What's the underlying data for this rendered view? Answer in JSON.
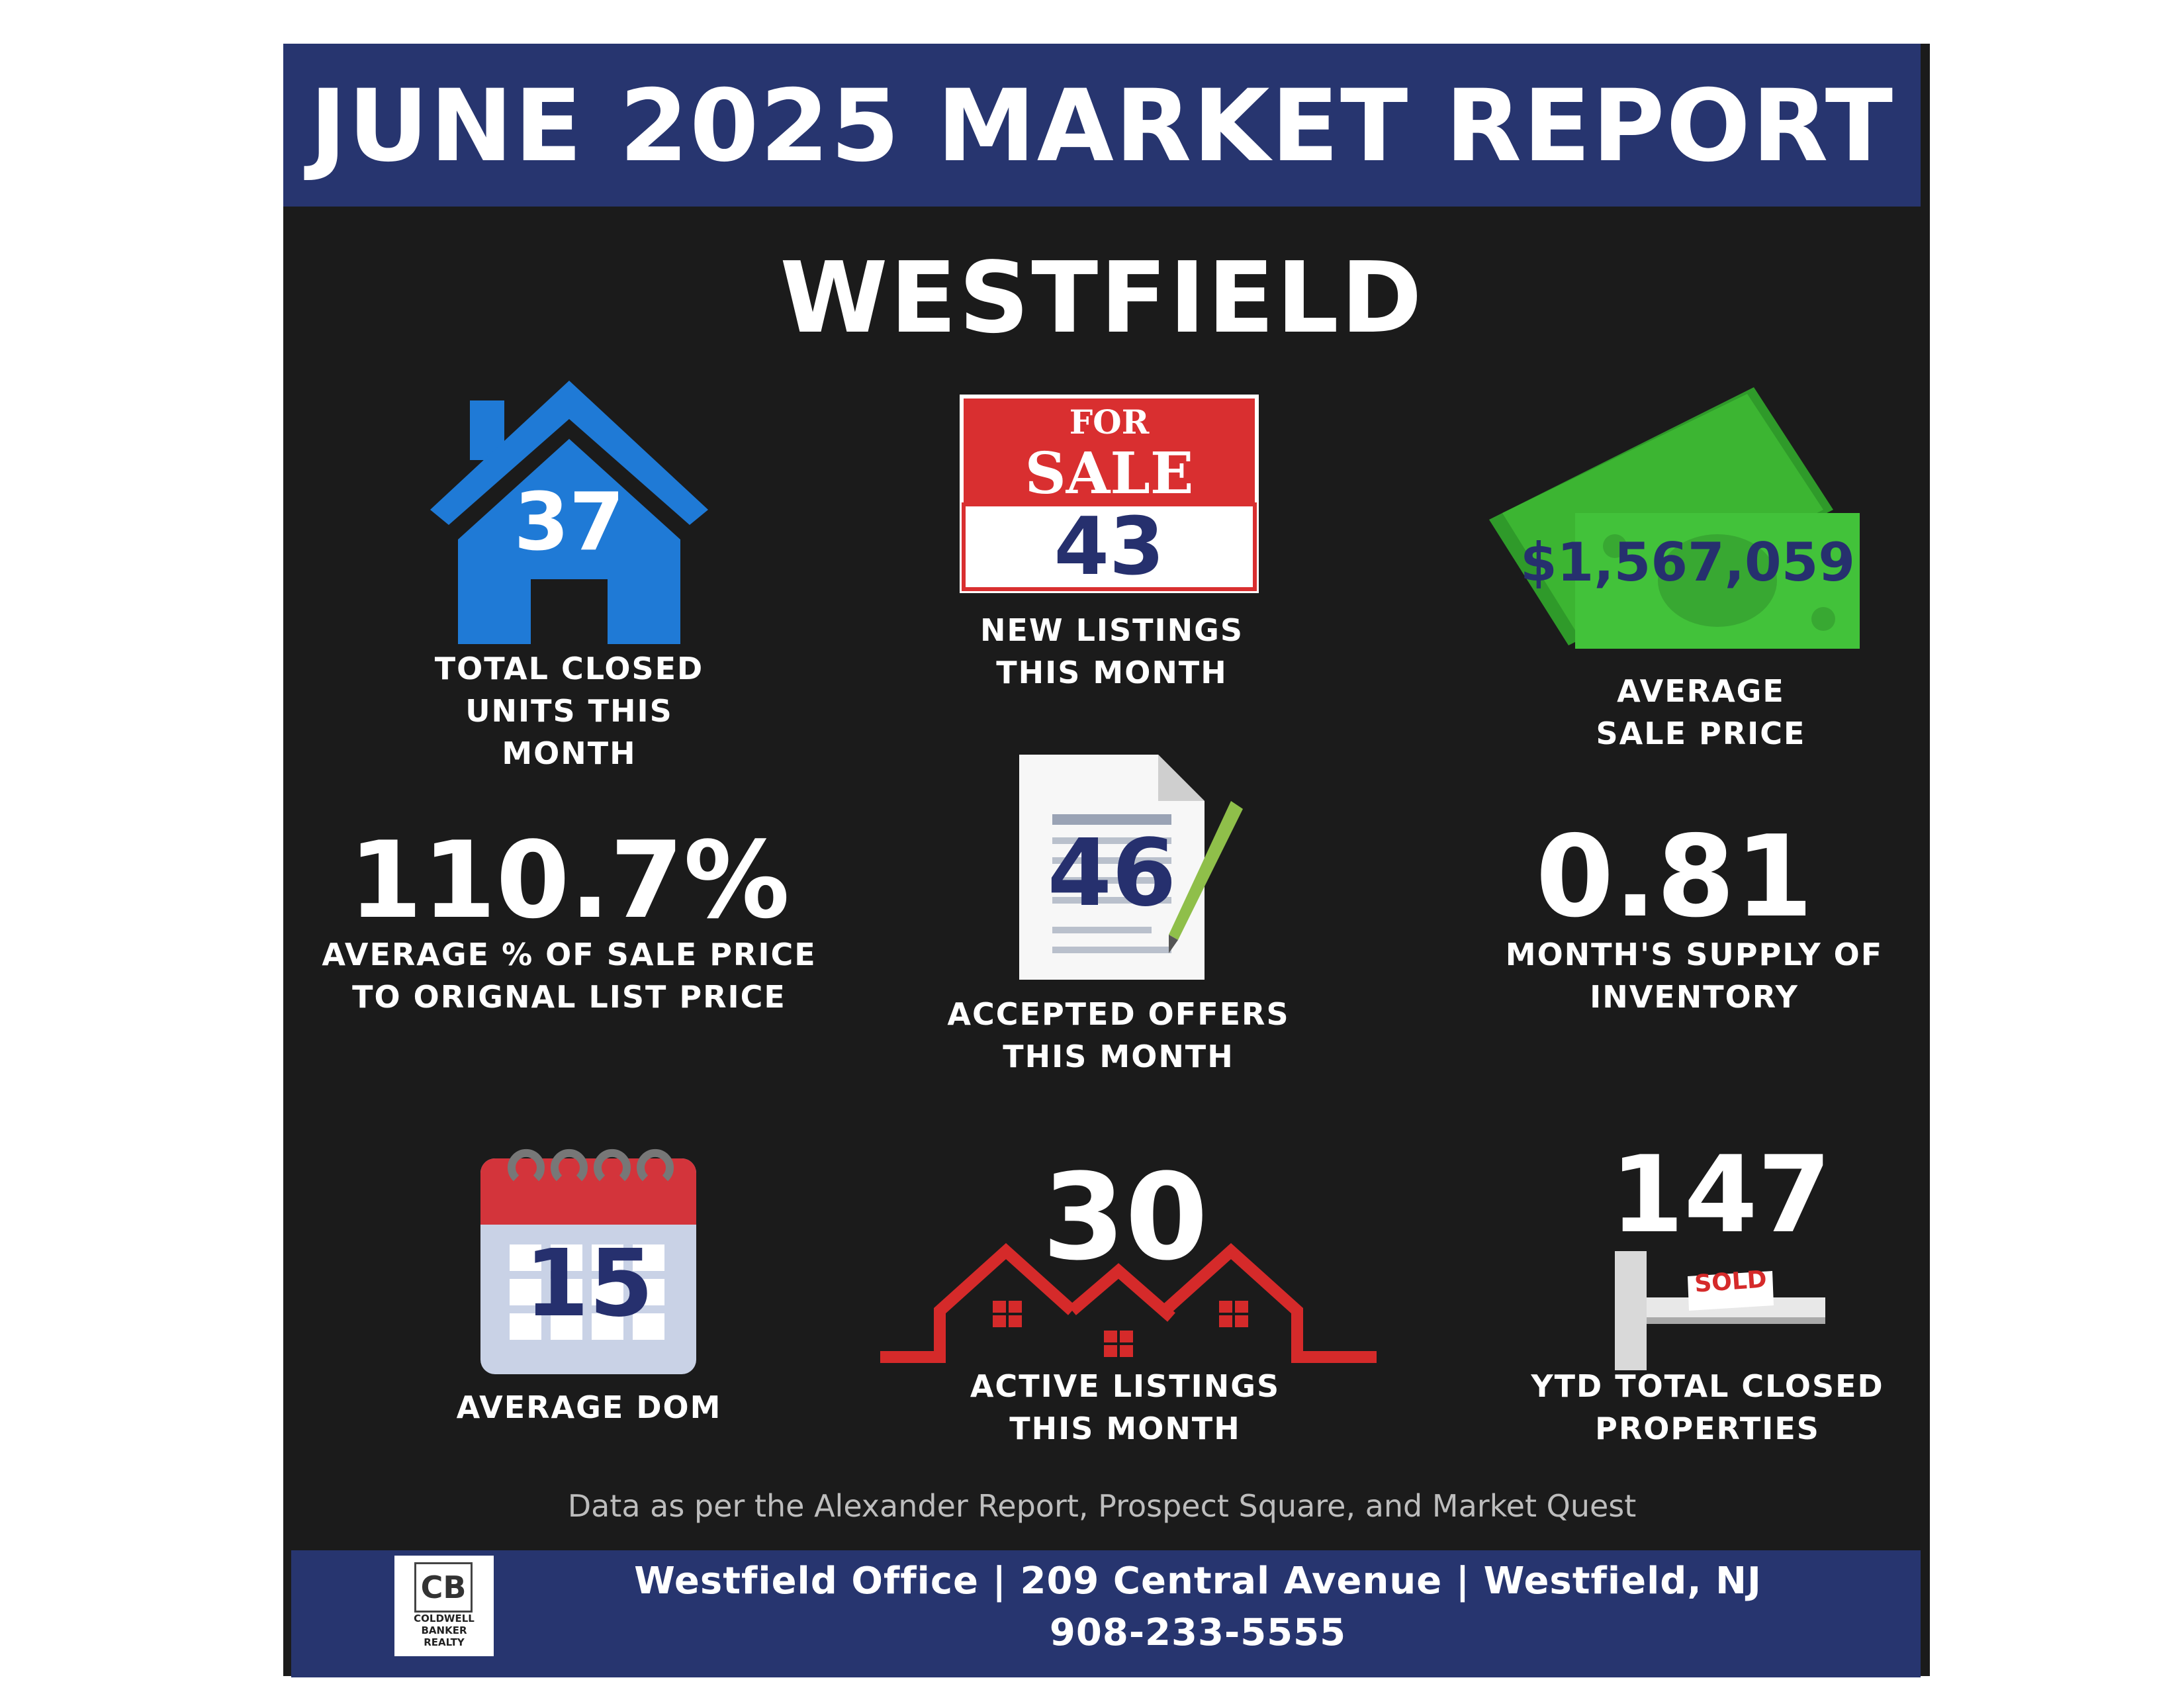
{
  "header": {
    "title": "JUNE 2025 MARKET REPORT",
    "city": "WESTFIELD"
  },
  "stats": {
    "closed_units": {
      "value": "37",
      "label": "TOTAL CLOSED\nUNITS THIS\nMONTH"
    },
    "new_listings": {
      "sign_top": "FOR",
      "sign_main": "SALE",
      "value": "43",
      "label": "NEW LISTINGS\nTHIS MONTH"
    },
    "avg_sale_price": {
      "value": "$1,567,059",
      "label": "AVERAGE\nSALE PRICE"
    },
    "pct_list_price": {
      "value": "110.7%",
      "label": "AVERAGE % OF SALE PRICE\nTO ORIGNAL LIST PRICE"
    },
    "accepted_offers": {
      "value": "46",
      "label": "ACCEPTED OFFERS\nTHIS MONTH"
    },
    "supply": {
      "value": "0.81",
      "label": "MONTH'S SUPPLY OF\nINVENTORY"
    },
    "avg_dom": {
      "value": "15",
      "label": "AVERAGE DOM"
    },
    "active_listings": {
      "value": "30",
      "label": "ACTIVE LISTINGS\nTHIS MONTH"
    },
    "ytd_closed": {
      "value": "147",
      "sign_text": "SOLD",
      "label": "YTD TOTAL CLOSED\nPROPERTIES"
    }
  },
  "source_note": "Data as per the Alexander Report, Prospect Square, and Market Quest",
  "footer": {
    "address": "Westfield Office | 209 Central Avenue | Westfield, NJ",
    "phone": "908-233-5555",
    "logo_mark": "CB",
    "logo_text": "COLDWELL\nBANKER\nREALTY"
  },
  "colors": {
    "navy": "#27356f",
    "house_blue": "#1f7ad6",
    "sale_red": "#d92f30",
    "money_green": "#3cb532",
    "calendar_red": "#d3343b",
    "roof_red": "#d52a2a"
  },
  "icons": [
    "house-icon",
    "for-sale-sign-icon",
    "money-bill-icon",
    "document-pen-icon",
    "calendar-icon",
    "rooftops-icon",
    "sold-sign-icon"
  ]
}
